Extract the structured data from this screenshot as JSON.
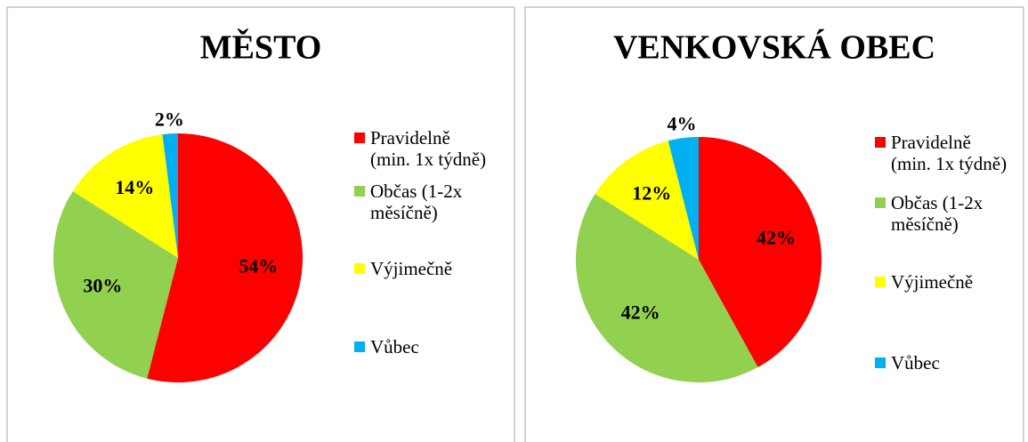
{
  "chart_data": [
    {
      "type": "pie",
      "title": "MĚSTO",
      "categories": [
        "Pravidelně (min. 1x týdně)",
        "Občas (1-2x měsíčně)",
        "Výjimečně",
        "Vůbec"
      ],
      "values": [
        54,
        30,
        14,
        2
      ],
      "value_labels": [
        "54%",
        "30%",
        "14%",
        "2%"
      ],
      "colors": [
        "#ff0000",
        "#92d050",
        "#ffff00",
        "#00b0f0"
      ],
      "legend": "right"
    },
    {
      "type": "pie",
      "title": "VENKOVSKÁ OBEC",
      "categories": [
        "Pravidelně (min. 1x týdně)",
        "Občas (1-2x měsíčně)",
        "Výjimečně",
        "Vůbec"
      ],
      "values": [
        42,
        42,
        12,
        4
      ],
      "value_labels": [
        "42%",
        "42%",
        "12%",
        "4%"
      ],
      "colors": [
        "#ff0000",
        "#92d050",
        "#ffff00",
        "#00b0f0"
      ],
      "legend": "right"
    }
  ]
}
